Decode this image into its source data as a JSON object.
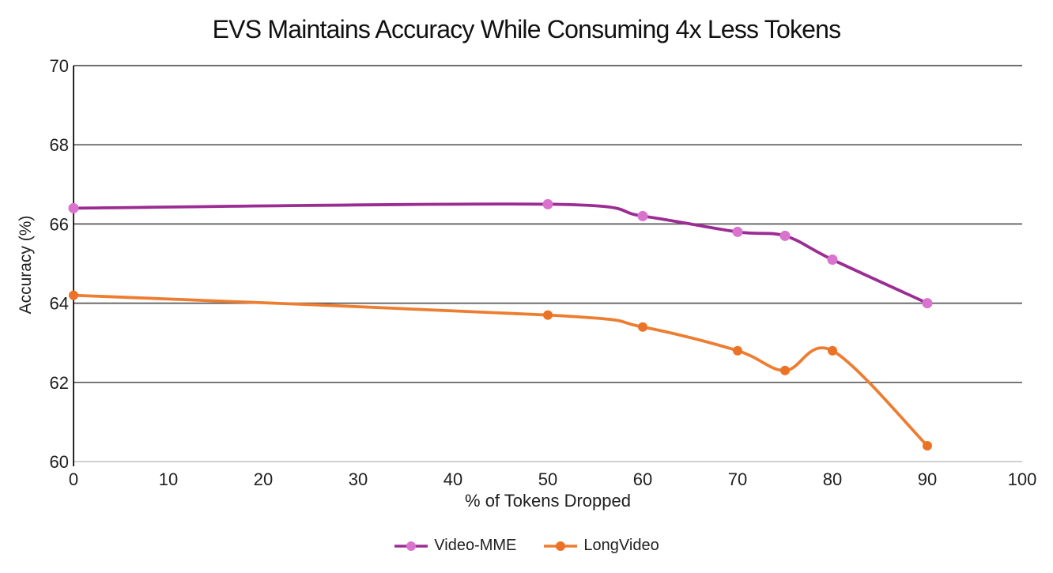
{
  "chart_data": {
    "type": "line",
    "title": "EVS Maintains Accuracy While Consuming 4x Less Tokens",
    "xlabel": "% of Tokens Dropped",
    "ylabel": "Accuracy (%)",
    "xlim": [
      0,
      100
    ],
    "ylim": [
      60,
      70
    ],
    "x_ticks": [
      0,
      10,
      20,
      30,
      40,
      50,
      60,
      70,
      80,
      90,
      100
    ],
    "y_ticks": [
      60,
      62,
      64,
      66,
      68,
      70
    ],
    "grid": "horizontal-only",
    "smooth_lines": true,
    "legend_position": "bottom-center",
    "x": [
      0,
      50,
      60,
      70,
      75,
      80,
      90
    ],
    "series": [
      {
        "name": "Video-MME",
        "values": [
          66.4,
          66.5,
          66.2,
          65.8,
          65.7,
          65.1,
          64.0
        ],
        "line_color": "#9B2C93",
        "marker_color": "#D973CE"
      },
      {
        "name": "LongVideo",
        "values": [
          64.2,
          63.7,
          63.4,
          62.8,
          62.3,
          62.8,
          60.4
        ],
        "line_color": "#ED7D31",
        "marker_color": "#EC7226"
      }
    ],
    "colors": {
      "gridline": "#595959",
      "x_axis_line": "#C9C9C9",
      "y_axis_line": "#000000",
      "tick_text": "#1F1F1F",
      "title_text": "#111111"
    }
  }
}
